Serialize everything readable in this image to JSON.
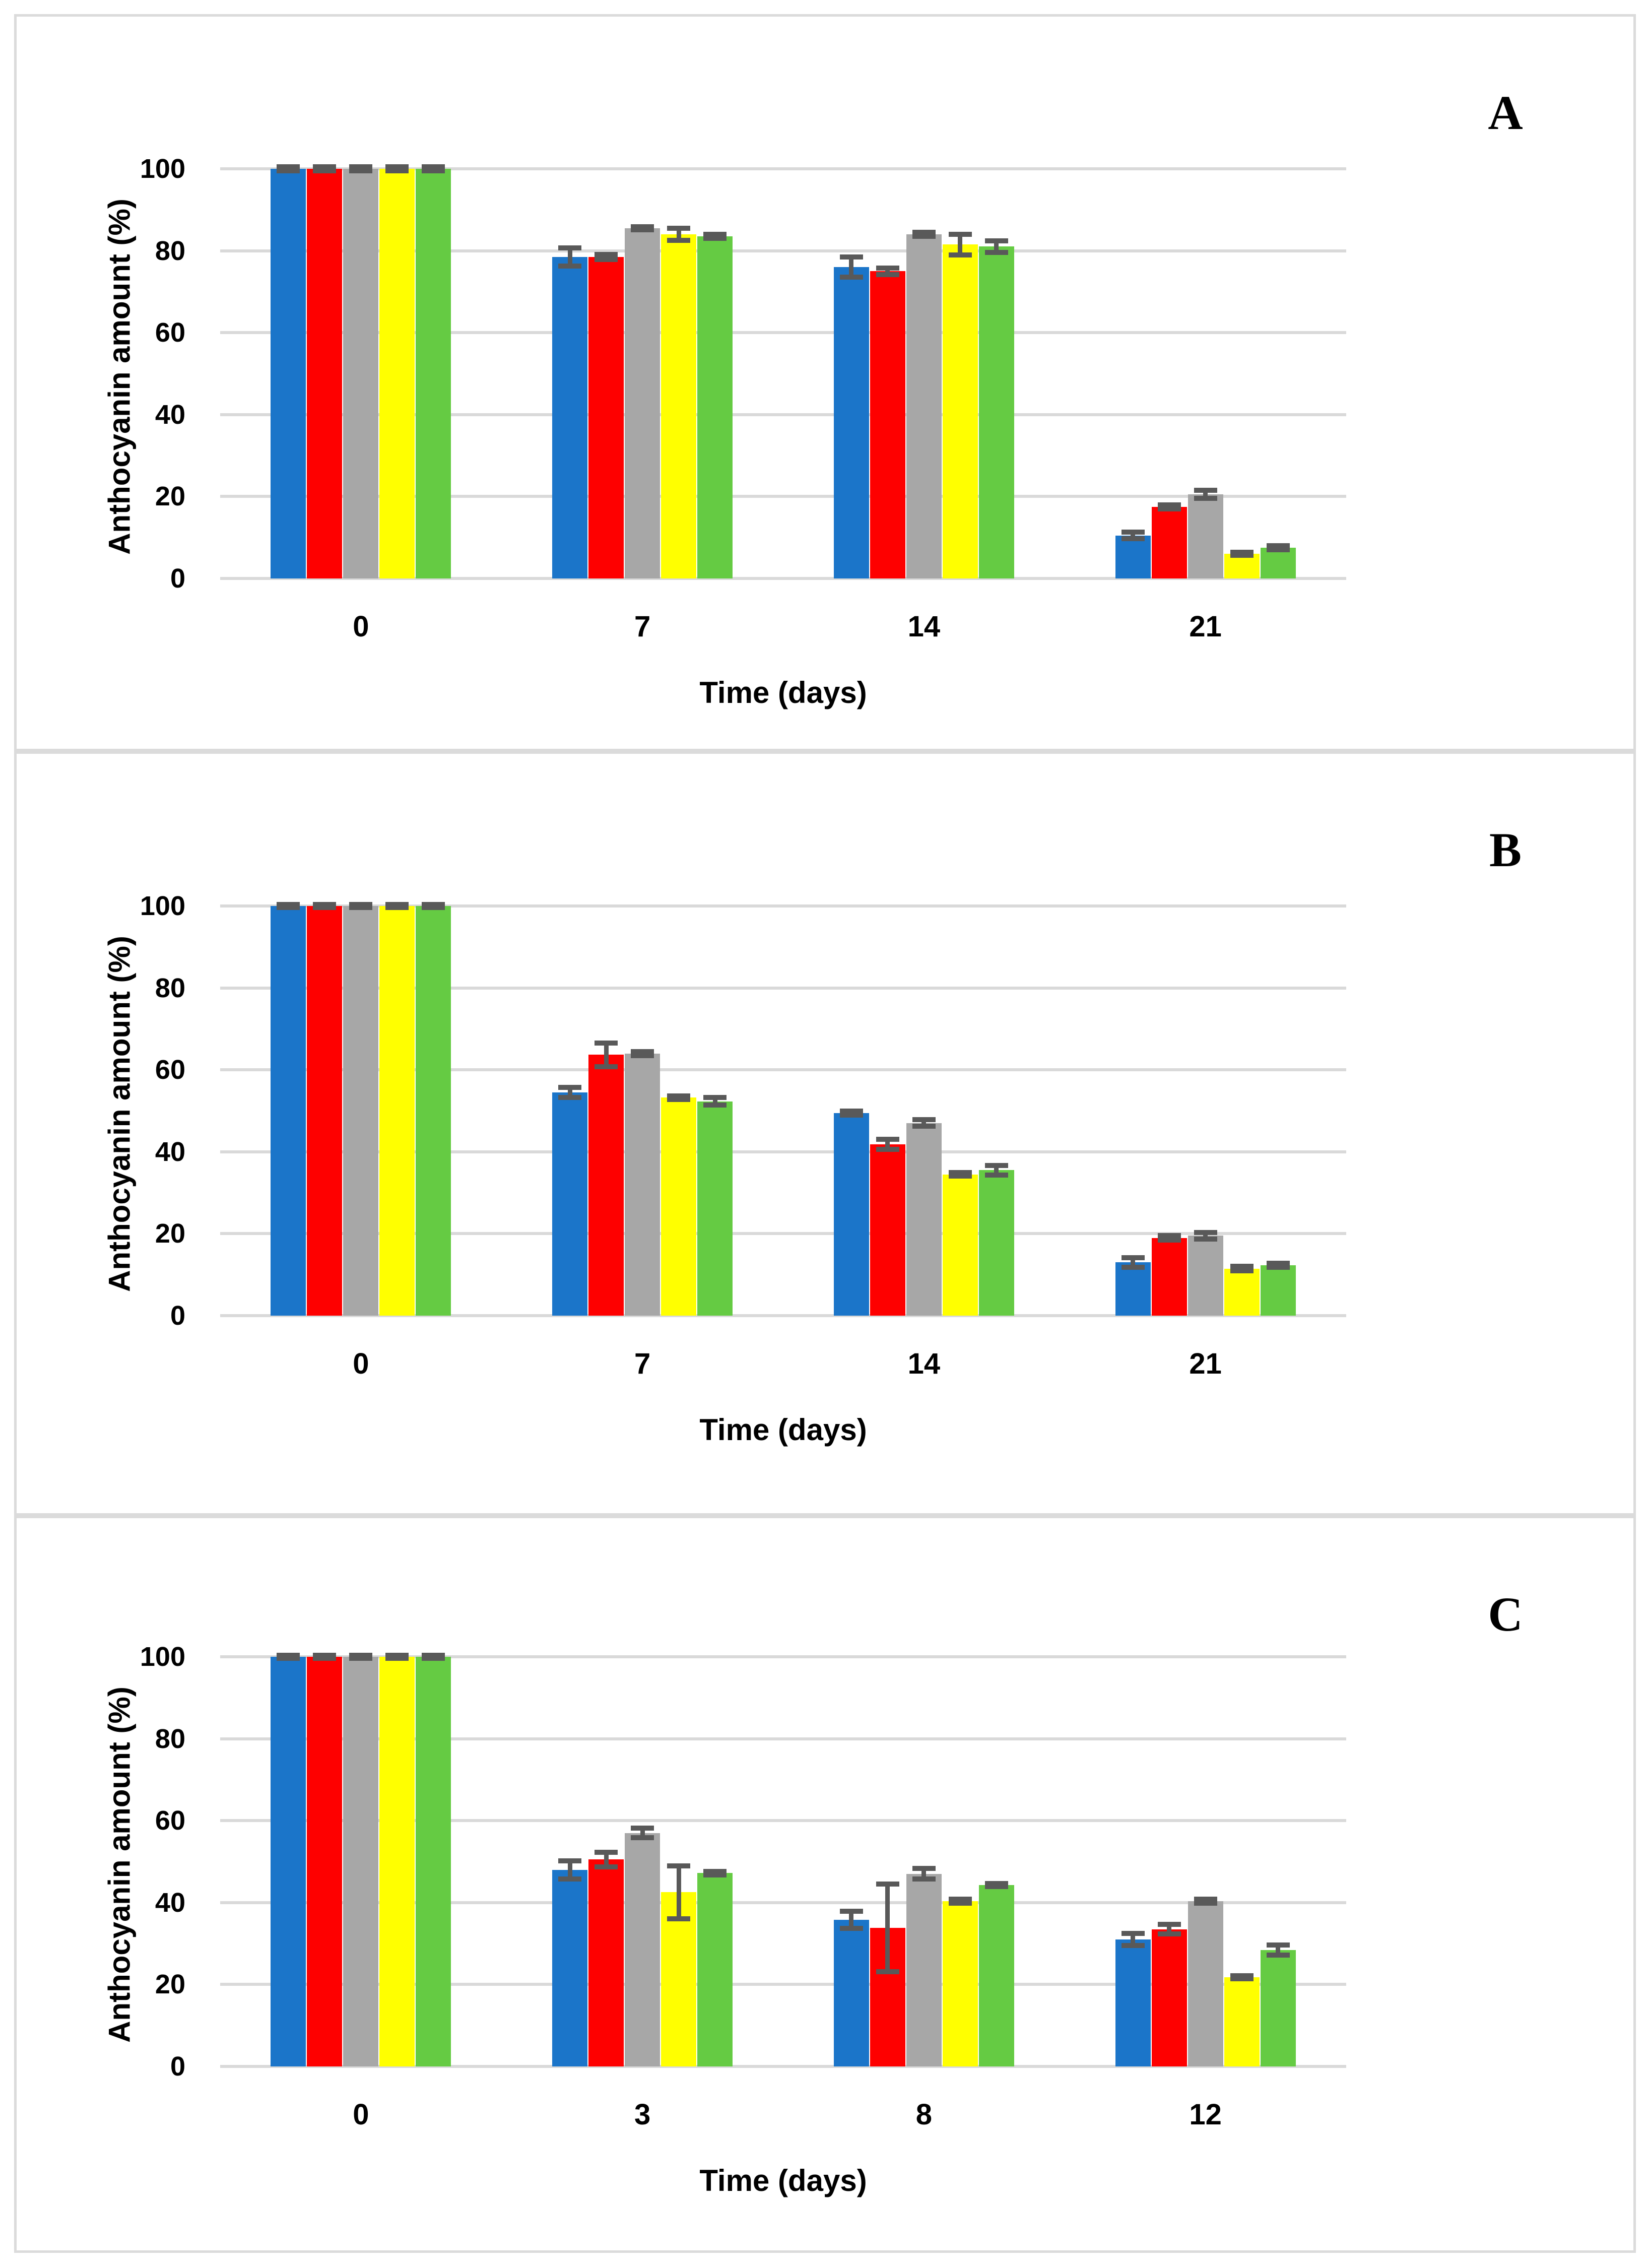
{
  "theme": {
    "background": "#FFFFFF",
    "panel_border_color": "#DBDBDB",
    "gridline_color": "#D9D9D9",
    "error_bar_color": "#595959",
    "text_color": "#000000",
    "series_colors": {
      "blue": "#1B75C9",
      "red": "#FE0000",
      "gray": "#A7A7A7",
      "yellow": "#FFFF00",
      "green": "#65CB43"
    }
  },
  "chart_data": [
    {
      "type": "bar",
      "panel_label": "A",
      "ylabel": "Anthocyanin amount (%)",
      "xlabel": "Time (days)",
      "ylim": [
        0,
        100
      ],
      "yticks": [
        0,
        20,
        40,
        60,
        80,
        100
      ],
      "grid": "horizontal",
      "legend": "none",
      "categories": [
        "0",
        "7",
        "14",
        "21"
      ],
      "series": [
        {
          "name": "blue",
          "color": "#1B75C9",
          "values": [
            100,
            78.5,
            76,
            10.5
          ],
          "errors": [
            0.5,
            2.2,
            2.5,
            0.8
          ]
        },
        {
          "name": "red",
          "color": "#FE0000",
          "values": [
            100,
            78.5,
            75,
            17.5
          ],
          "errors": [
            0.5,
            0.6,
            0.8,
            0.5
          ]
        },
        {
          "name": "gray",
          "color": "#A7A7A7",
          "values": [
            100,
            85.5,
            84,
            20.5
          ],
          "errors": [
            0.5,
            0.4,
            0.5,
            1.0
          ]
        },
        {
          "name": "yellow",
          "color": "#FFFF00",
          "values": [
            100,
            84,
            81.5,
            6
          ],
          "errors": [
            0.5,
            1.5,
            2.5,
            0.4
          ]
        },
        {
          "name": "green",
          "color": "#65CB43",
          "values": [
            100,
            83.5,
            81,
            7.5
          ],
          "errors": [
            0.5,
            0.5,
            1.4,
            0.5
          ]
        }
      ]
    },
    {
      "type": "bar",
      "panel_label": "B",
      "ylabel": "Anthocyanin amount (%)",
      "xlabel": "Time (days)",
      "ylim": [
        0,
        100
      ],
      "yticks": [
        0,
        20,
        40,
        60,
        80,
        100
      ],
      "grid": "horizontal",
      "legend": "none",
      "categories": [
        "0",
        "7",
        "14",
        "21"
      ],
      "series": [
        {
          "name": "blue",
          "color": "#1B75C9",
          "values": [
            100,
            54.5,
            49.5,
            13
          ],
          "errors": [
            0.4,
            1.2,
            0.5,
            1.2
          ]
        },
        {
          "name": "red",
          "color": "#FE0000",
          "values": [
            100,
            63.7,
            41.8,
            19
          ],
          "errors": [
            0.4,
            2.9,
            1.2,
            0.6
          ]
        },
        {
          "name": "gray",
          "color": "#A7A7A7",
          "values": [
            100,
            64,
            47,
            19.5
          ],
          "errors": [
            0.4,
            0.5,
            0.8,
            0.8
          ]
        },
        {
          "name": "yellow",
          "color": "#FFFF00",
          "values": [
            100,
            53.2,
            34.5,
            11.5
          ],
          "errors": [
            0.4,
            0.4,
            0.4,
            0.6
          ]
        },
        {
          "name": "green",
          "color": "#65CB43",
          "values": [
            100,
            52.3,
            35.5,
            12.3
          ],
          "errors": [
            0.4,
            0.9,
            1.2,
            0.5
          ]
        }
      ]
    },
    {
      "type": "bar",
      "panel_label": "C",
      "ylabel": "Anthocyanin amount (%)",
      "xlabel": "Time (days)",
      "ylim": [
        0,
        100
      ],
      "yticks": [
        0,
        20,
        40,
        60,
        80,
        100
      ],
      "grid": "horizontal",
      "legend": "none",
      "categories": [
        "0",
        "3",
        "8",
        "12"
      ],
      "series": [
        {
          "name": "blue",
          "color": "#1B75C9",
          "values": [
            100,
            48,
            35.8,
            31
          ],
          "errors": [
            0.4,
            2.2,
            2.1,
            1.5
          ]
        },
        {
          "name": "red",
          "color": "#FE0000",
          "values": [
            100,
            50.5,
            33.8,
            33.5
          ],
          "errors": [
            0.4,
            1.8,
            10.7,
            1.2
          ]
        },
        {
          "name": "gray",
          "color": "#A7A7A7",
          "values": [
            100,
            57,
            47,
            40.3
          ],
          "errors": [
            0.4,
            1.2,
            1.3,
            0.5
          ]
        },
        {
          "name": "yellow",
          "color": "#FFFF00",
          "values": [
            100,
            42.5,
            40.3,
            21.8
          ],
          "errors": [
            0.4,
            6.5,
            0.5,
            0.4
          ]
        },
        {
          "name": "green",
          "color": "#65CB43",
          "values": [
            100,
            47.2,
            44.3,
            28.4
          ],
          "errors": [
            0.4,
            0.4,
            0.4,
            1.2
          ]
        }
      ]
    }
  ]
}
